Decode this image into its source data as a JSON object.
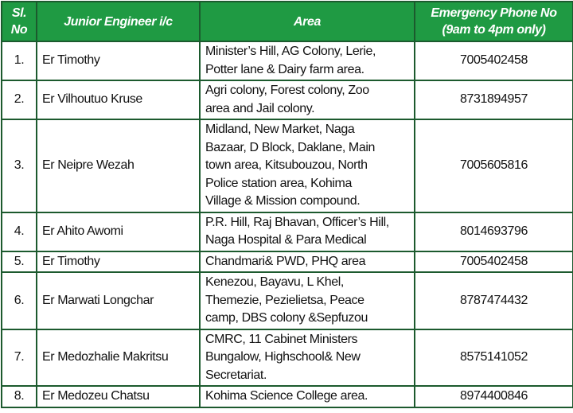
{
  "table": {
    "header": {
      "sl": [
        "Sl.",
        "No"
      ],
      "engineer": [
        "Junior Engineer i/c"
      ],
      "area": [
        "Area"
      ],
      "phone": [
        "Emergency Phone No",
        "(9am to 4pm only)"
      ]
    },
    "rows": [
      {
        "sl": "1.",
        "engineer": "Er Timothy",
        "area": [
          "Minister’s Hill, AG Colony, Lerie,",
          "Potter lane & Dairy farm area."
        ],
        "phone": "7005402458"
      },
      {
        "sl": "2.",
        "engineer": "Er Vilhoutuo Kruse",
        "area": [
          "Agri colony, Forest colony, Zoo",
          "area and Jail colony."
        ],
        "phone": "8731894957"
      },
      {
        "sl": "3.",
        "engineer": "Er Neipre Wezah",
        "area": [
          "Midland, New Market, Naga",
          "Bazaar, D Block, Daklane, Main",
          "town area, Kitsubouzou, North",
          "Police station area, Kohima",
          "Village & Mission compound."
        ],
        "phone": "7005605816"
      },
      {
        "sl": "4.",
        "engineer": "Er Ahito Awomi",
        "area": [
          "P.R. Hill, Raj Bhavan, Officer’s Hill,",
          "Naga Hospital & Para Medical"
        ],
        "phone": "8014693796"
      },
      {
        "sl": "5.",
        "engineer": "Er Timothy",
        "area": [
          "Chandmari& PWD, PHQ area"
        ],
        "phone": "7005402458"
      },
      {
        "sl": "6.",
        "engineer": "Er Marwati Longchar",
        "area": [
          "Kenezou, Bayavu, L Khel,",
          "Themezie, Pezielietsa, Peace",
          "camp, DBS colony &Sepfuzou"
        ],
        "phone": "8787474432"
      },
      {
        "sl": "7.",
        "engineer": "Er Medozhalie Makritsu",
        "area": [
          "CMRC, 11 Cabinet Ministers",
          "Bungalow, Highschool& New",
          "Secretariat."
        ],
        "phone": "8575141052"
      },
      {
        "sl": "8.",
        "engineer": "Er Medozeu Chatsu",
        "area": [
          "Kohima Science College area."
        ],
        "phone": "8974400846"
      }
    ]
  }
}
